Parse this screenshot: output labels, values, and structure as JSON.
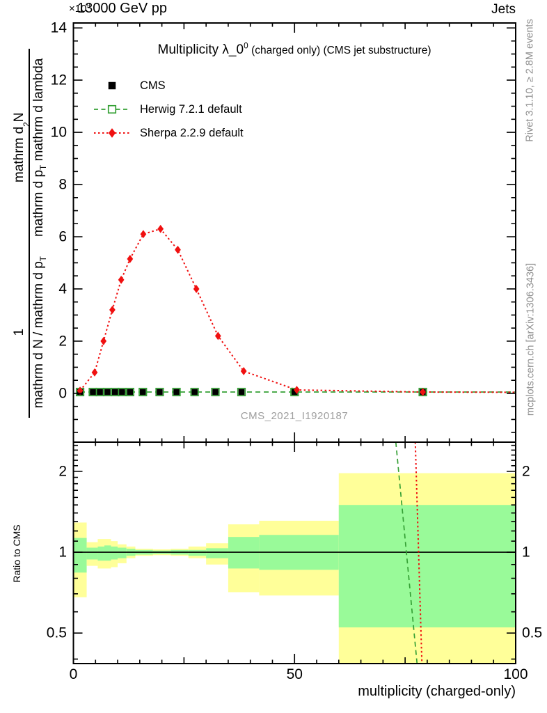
{
  "header": {
    "scale_prefix": "×10",
    "scale_exponent": "9",
    "beam_title": "13000 GeV pp",
    "right_label": "Jets"
  },
  "side_notes": {
    "rivet": "Rivet 3.1.10, ≥ 2.8M events",
    "mcplots": "mcplots.cern.ch [arXiv:1306.3436]"
  },
  "watermark": "CMS_2021_I1920187",
  "colors": {
    "cms": "#000000",
    "herwig": "#35a035",
    "sherpa": "#f01010",
    "band_total": "#ffff99",
    "band_stat": "#99fa99",
    "gray_text": "#8f8f8f",
    "watermark": "#9e9e9e"
  },
  "legend": {
    "items": [
      {
        "label": "CMS",
        "marker": "filled-square",
        "line": "none",
        "color": "#000000"
      },
      {
        "label": "Herwig 7.2.1 default",
        "marker": "open-square",
        "line": "dashed",
        "color": "#35a035"
      },
      {
        "label": "Sherpa 2.2.9 default",
        "marker": "filled-diamond",
        "line": "dotted",
        "color": "#f01010"
      }
    ]
  },
  "y_axis_label": {
    "fractions": [
      {
        "num": "1",
        "den": "mathrm d N / mathrm d p_{T}"
      },
      {
        "num": "mathrm d^{2}N",
        "den": "mathrm d p_{T} mathrm d lambda"
      }
    ]
  },
  "chart_data": [
    {
      "panel": "main",
      "type": "line",
      "title": "Multiplicity λ_0^{0}",
      "title_note": "(charged only) (CMS jet substructure)",
      "xlim": [
        0,
        100
      ],
      "ylim": [
        -1.87,
        14.19
      ],
      "xticks": [
        0,
        50,
        100
      ],
      "xticks_medium": [
        25,
        75
      ],
      "x_minor_step": 5,
      "yticks": [
        0,
        2,
        4,
        6,
        8,
        10,
        12,
        14
      ],
      "y_minor_step": 0.5,
      "y_scale_note": "×10^9",
      "series": [
        {
          "name": "CMS",
          "color": "#000000",
          "marker": "filled-square",
          "line": "none",
          "x": [
            1.5,
            4.4,
            6.0,
            7.7,
            9.4,
            11.0,
            12.8,
            15.7,
            19.5,
            23.3,
            27.4,
            32.1,
            38.0,
            50,
            79
          ],
          "y": [
            0.05,
            0.05,
            0.05,
            0.05,
            0.05,
            0.05,
            0.05,
            0.05,
            0.05,
            0.05,
            0.05,
            0.05,
            0.05,
            0.05,
            0.05
          ]
        },
        {
          "name": "Herwig 7.2.1 default",
          "color": "#35a035",
          "marker": "open-square",
          "line": "dashed",
          "x": [
            1.5,
            4.4,
            6.0,
            7.7,
            9.4,
            11.0,
            12.8,
            15.7,
            19.5,
            23.3,
            27.4,
            32.1,
            38.0,
            50,
            79
          ],
          "y": [
            0.05,
            0.05,
            0.05,
            0.05,
            0.05,
            0.05,
            0.05,
            0.05,
            0.05,
            0.05,
            0.05,
            0.05,
            0.05,
            0.05,
            0.05
          ],
          "line_extend_to": [
            100,
            0.05
          ]
        },
        {
          "name": "Sherpa 2.2.9 default",
          "color": "#f01010",
          "marker": "filled-diamond",
          "line": "dotted",
          "x": [
            1.5,
            4.8,
            6.8,
            8.8,
            10.8,
            12.8,
            15.8,
            19.7,
            23.6,
            27.8,
            32.7,
            38.5,
            50.5,
            79
          ],
          "y": [
            0.1,
            0.8,
            2.0,
            3.2,
            4.35,
            5.15,
            6.1,
            6.3,
            5.5,
            4.0,
            2.2,
            0.85,
            0.13,
            0.05
          ],
          "line_extend_to": [
            100,
            0.04
          ]
        }
      ]
    },
    {
      "panel": "ratio",
      "type": "bands",
      "ylabel": "Ratio to CMS",
      "xlabel": "multiplicity (charged-only)",
      "yscale": "log",
      "ylim": [
        0.385,
        2.57
      ],
      "yticks": [
        0.5,
        1,
        2
      ],
      "y_minor": [
        0.4,
        0.6,
        0.7,
        0.8,
        0.9,
        1.1,
        1.2,
        1.3,
        1.4,
        1.5,
        1.6,
        1.7,
        1.8,
        1.9,
        2.1,
        2.2,
        2.3,
        2.4,
        2.5
      ],
      "xticks": [
        0,
        50,
        100
      ],
      "xticks_medium": [
        25,
        75
      ],
      "x_minor_step": 5,
      "reference_y": 1,
      "bins": [
        {
          "x": [
            0,
            3
          ],
          "total": [
            0.68,
            1.29
          ],
          "stat": [
            0.84,
            1.13
          ]
        },
        {
          "x": [
            3,
            5.5
          ],
          "total": [
            0.89,
            1.09
          ],
          "stat": [
            0.94,
            1.04
          ]
        },
        {
          "x": [
            5.5,
            7
          ],
          "total": [
            0.87,
            1.12
          ],
          "stat": [
            0.93,
            1.05
          ]
        },
        {
          "x": [
            7,
            8.5
          ],
          "total": [
            0.87,
            1.12
          ],
          "stat": [
            0.93,
            1.06
          ]
        },
        {
          "x": [
            8.5,
            10
          ],
          "total": [
            0.88,
            1.1
          ],
          "stat": [
            0.94,
            1.05
          ]
        },
        {
          "x": [
            10,
            12
          ],
          "total": [
            0.91,
            1.07
          ],
          "stat": [
            0.95,
            1.04
          ]
        },
        {
          "x": [
            12,
            14
          ],
          "total": [
            0.95,
            1.05
          ],
          "stat": [
            0.97,
            1.03
          ]
        },
        {
          "x": [
            14,
            18
          ],
          "total": [
            0.97,
            1.03
          ],
          "stat": [
            0.98,
            1.02
          ]
        },
        {
          "x": [
            18,
            22
          ],
          "total": [
            0.975,
            1.025
          ],
          "stat": [
            0.985,
            1.015
          ]
        },
        {
          "x": [
            22,
            26
          ],
          "total": [
            0.97,
            1.03
          ],
          "stat": [
            0.98,
            1.02
          ]
        },
        {
          "x": [
            26,
            30
          ],
          "total": [
            0.95,
            1.05
          ],
          "stat": [
            0.97,
            1.02
          ]
        },
        {
          "x": [
            30,
            35
          ],
          "total": [
            0.9,
            1.08
          ],
          "stat": [
            0.95,
            1.035
          ]
        },
        {
          "x": [
            35,
            42
          ],
          "total": [
            0.71,
            1.27
          ],
          "stat": [
            0.87,
            1.14
          ]
        },
        {
          "x": [
            42,
            60
          ],
          "total": [
            0.69,
            1.31
          ],
          "stat": [
            0.86,
            1.16
          ]
        },
        {
          "x": [
            60,
            100
          ],
          "total": [
            0.385,
            1.97
          ],
          "stat": [
            0.525,
            1.5
          ]
        }
      ],
      "lines": [
        {
          "name": "Herwig 7.2.1 default",
          "color": "#35a035",
          "style": "dashed",
          "x": [
            72.9,
            77.7
          ],
          "y": [
            2.57,
            0.385
          ]
        },
        {
          "name": "Sherpa 2.2.9 default",
          "color": "#f01010",
          "style": "dotted",
          "x": [
            77.3,
            78.8
          ],
          "y": [
            2.57,
            0.385
          ]
        }
      ]
    }
  ]
}
